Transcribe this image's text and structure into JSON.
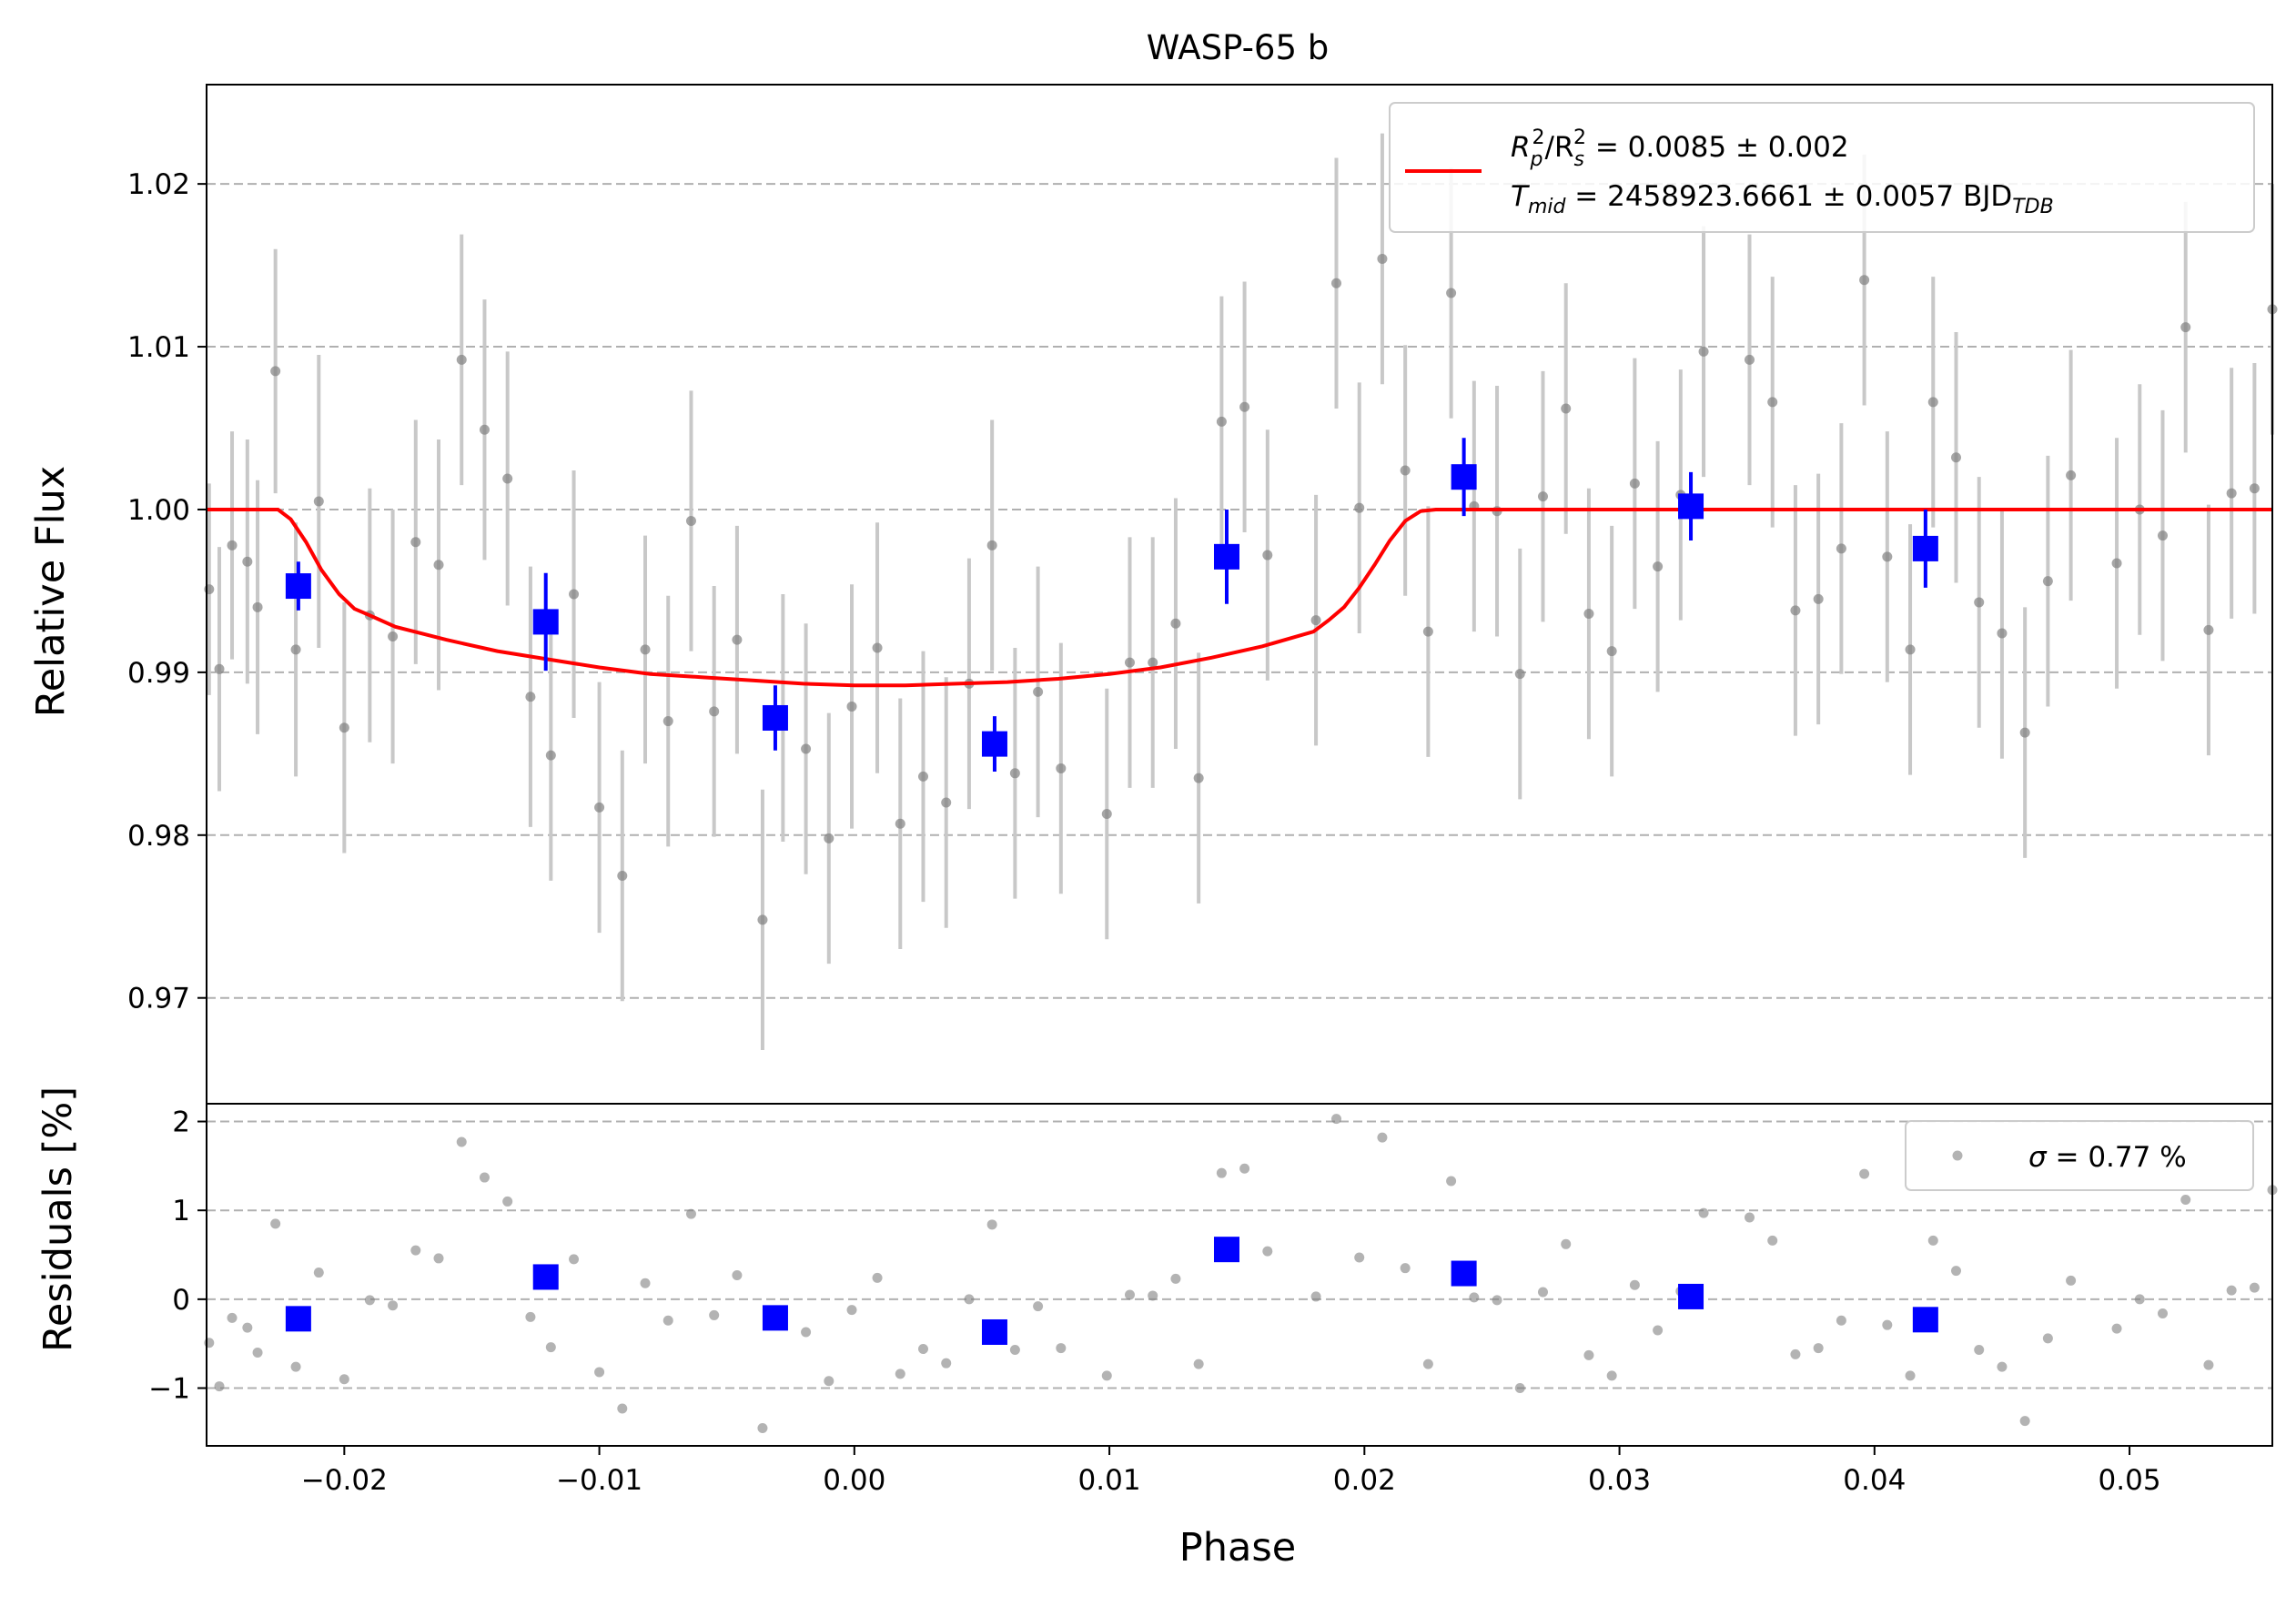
{
  "chart_data": [
    {
      "panel": "flux",
      "type": "scatter",
      "title": "WASP-65 b",
      "ylabel": "Relative Flux",
      "xlim": [
        -0.0254,
        0.0556
      ],
      "ylim": [
        0.9635,
        1.0261
      ],
      "grid": "y-dashed",
      "yticks": [
        0.97,
        0.98,
        0.99,
        1.0,
        1.01,
        1.02
      ],
      "ytick_labels": [
        "0.97",
        "0.98",
        "0.99",
        "1.00",
        "1.01",
        "1.02"
      ],
      "legend": {
        "placement": "top-right",
        "model_color": "#ff0000",
        "line1_parts": [
          "R",
          "p",
          "2",
          "/R",
          "s",
          "2",
          " = 0.0085 ± 0.002"
        ],
        "line2_parts": [
          "T",
          "mid",
          " = 2458923.6661 ± 0.0057 BJD",
          "TDB"
        ]
      },
      "raw_data": {
        "color": "#808080",
        "errorbar_color": "#c8c8c8",
        "points": [
          [
            -0.0253,
            0.9951,
            0.0065
          ],
          [
            -0.0249,
            0.9902,
            0.0075
          ],
          [
            -0.0244,
            0.9978,
            0.007
          ],
          [
            -0.0238,
            0.9968,
            0.0075
          ],
          [
            -0.0234,
            0.994,
            0.0078
          ],
          [
            -0.0227,
            1.0085,
            0.0075
          ],
          [
            -0.0219,
            0.9914,
            0.0078
          ],
          [
            -0.021,
            1.0005,
            0.009
          ],
          [
            -0.02,
            0.9866,
            0.0077
          ],
          [
            -0.019,
            0.9935,
            0.0078
          ],
          [
            -0.0181,
            0.9922,
            0.0078
          ],
          [
            -0.0172,
            0.998,
            0.0075
          ],
          [
            -0.0163,
            0.9966,
            0.0077
          ],
          [
            -0.0154,
            1.0092,
            0.0077
          ],
          [
            -0.0145,
            1.0049,
            0.008
          ],
          [
            -0.0136,
            1.0019,
            0.0078
          ],
          [
            -0.0127,
            0.9885,
            0.008
          ],
          [
            -0.0119,
            0.9849,
            0.0077
          ],
          [
            -0.011,
            0.9948,
            0.0076
          ],
          [
            -0.01,
            0.9817,
            0.0077
          ],
          [
            -0.0091,
            0.9775,
            0.0077
          ],
          [
            -0.0082,
            0.9914,
            0.007
          ],
          [
            -0.0073,
            0.987,
            0.0077
          ],
          [
            -0.0064,
            0.9993,
            0.008
          ],
          [
            -0.0055,
            0.9876,
            0.0077
          ],
          [
            -0.0046,
            0.992,
            0.007
          ],
          [
            -0.0036,
            0.9748,
            0.008
          ],
          [
            -0.0028,
            0.9872,
            0.0076
          ],
          [
            -0.0019,
            0.9853,
            0.0077
          ],
          [
            -0.001,
            0.9798,
            0.0077
          ],
          [
            -0.0001,
            0.9879,
            0.0075
          ],
          [
            0.0009,
            0.9915,
            0.0077
          ],
          [
            0.0018,
            0.9807,
            0.0077
          ],
          [
            0.0027,
            0.9836,
            0.0077
          ],
          [
            0.0036,
            0.982,
            0.0077
          ],
          [
            0.0045,
            0.9893,
            0.0077
          ],
          [
            0.0054,
            0.9978,
            0.0077
          ],
          [
            0.0063,
            0.9838,
            0.0077
          ],
          [
            0.0072,
            0.9888,
            0.0077
          ],
          [
            0.0081,
            0.9841,
            0.0077
          ],
          [
            0.0099,
            0.9813,
            0.0077
          ],
          [
            0.0108,
            0.9906,
            0.0077
          ],
          [
            0.0117,
            0.9906,
            0.0077
          ],
          [
            0.0126,
            0.993,
            0.0077
          ],
          [
            0.0135,
            0.9835,
            0.0077
          ],
          [
            0.0144,
            1.0054,
            0.0077
          ],
          [
            0.0153,
            1.0063,
            0.0077
          ],
          [
            0.0162,
            0.9972,
            0.0077
          ],
          [
            0.0181,
            0.9932,
            0.0077
          ],
          [
            0.0189,
            1.0139,
            0.0077
          ],
          [
            0.0198,
            1.0001,
            0.0077
          ],
          [
            0.0207,
            1.0154,
            0.0077
          ],
          [
            0.0216,
            1.0024,
            0.0077
          ],
          [
            0.0225,
            0.9925,
            0.0077
          ],
          [
            0.0234,
            1.0133,
            0.0077
          ],
          [
            0.0243,
            1.0002,
            0.0077
          ],
          [
            0.0252,
            0.9999,
            0.0077
          ],
          [
            0.0261,
            0.9899,
            0.0077
          ],
          [
            0.027,
            1.0008,
            0.0077
          ],
          [
            0.0279,
            1.0062,
            0.0077
          ],
          [
            0.0288,
            0.9936,
            0.0077
          ],
          [
            0.0297,
            0.9913,
            0.0077
          ],
          [
            0.0306,
            1.0016,
            0.0077
          ],
          [
            0.0315,
            0.9965,
            0.0077
          ],
          [
            0.0324,
            1.0009,
            0.0077
          ],
          [
            0.0333,
            1.0097,
            0.0077
          ],
          [
            0.0351,
            1.0092,
            0.0077
          ],
          [
            0.036,
            1.0066,
            0.0077
          ],
          [
            0.0369,
            0.9938,
            0.0077
          ],
          [
            0.0378,
            0.9945,
            0.0077
          ],
          [
            0.0387,
            0.9976,
            0.0077
          ],
          [
            0.0396,
            1.0141,
            0.0077
          ],
          [
            0.0405,
            0.9971,
            0.0077
          ],
          [
            0.0414,
            0.9914,
            0.0077
          ],
          [
            0.0423,
            1.0066,
            0.0077
          ],
          [
            0.0432,
            1.0032,
            0.0077
          ],
          [
            0.0441,
            0.9943,
            0.0077
          ],
          [
            0.045,
            0.9924,
            0.0077
          ],
          [
            0.0459,
            0.9863,
            0.0077
          ],
          [
            0.0468,
            0.9956,
            0.0077
          ],
          [
            0.0477,
            1.0021,
            0.0077
          ],
          [
            0.0495,
            0.9967,
            0.0077
          ],
          [
            0.0504,
            1.0,
            0.0077
          ],
          [
            0.0513,
            0.9984,
            0.0077
          ],
          [
            0.0522,
            1.0112,
            0.0077
          ],
          [
            0.0531,
            0.9926,
            0.0077
          ],
          [
            0.054,
            1.001,
            0.0077
          ],
          [
            0.0549,
            1.0013,
            0.0077
          ],
          [
            0.0556,
            1.0123,
            0.0077
          ]
        ]
      },
      "binned_data": {
        "color": "#0000ff",
        "points": [
          [
            -0.0218,
            0.9953,
            0.0015
          ],
          [
            -0.0121,
            0.9931,
            0.003
          ],
          [
            -0.0031,
            0.9872,
            0.002
          ],
          [
            0.0055,
            0.9856,
            0.0017
          ],
          [
            0.0146,
            0.9971,
            0.0029
          ],
          [
            0.0239,
            1.002,
            0.0024
          ],
          [
            0.0328,
            1.0002,
            0.0021
          ],
          [
            0.042,
            0.9976,
            0.0024
          ]
        ]
      },
      "model_curve": {
        "color": "#ff0000",
        "points": [
          [
            -0.0254,
            1.0
          ],
          [
            -0.0226,
            1.0
          ],
          [
            -0.0221,
            0.9994
          ],
          [
            -0.0215,
            0.998
          ],
          [
            -0.0209,
            0.9963
          ],
          [
            -0.0202,
            0.9948
          ],
          [
            -0.0196,
            0.9939
          ],
          [
            -0.019,
            0.9935
          ],
          [
            -0.018,
            0.9928
          ],
          [
            -0.016,
            0.992
          ],
          [
            -0.014,
            0.9913
          ],
          [
            -0.012,
            0.9908
          ],
          [
            -0.01,
            0.9903
          ],
          [
            -0.008,
            0.9899
          ],
          [
            -0.006,
            0.9897
          ],
          [
            -0.004,
            0.9895
          ],
          [
            -0.002,
            0.9893
          ],
          [
            0.0,
            0.9892
          ],
          [
            0.002,
            0.9892
          ],
          [
            0.004,
            0.9893
          ],
          [
            0.006,
            0.9894
          ],
          [
            0.008,
            0.9896
          ],
          [
            0.01,
            0.9899
          ],
          [
            0.012,
            0.9903
          ],
          [
            0.014,
            0.9909
          ],
          [
            0.016,
            0.9916
          ],
          [
            0.018,
            0.9925
          ],
          [
            0.0186,
            0.9932
          ],
          [
            0.0192,
            0.994
          ],
          [
            0.0198,
            0.9952
          ],
          [
            0.0204,
            0.9966
          ],
          [
            0.021,
            0.9981
          ],
          [
            0.0216,
            0.9993
          ],
          [
            0.0222,
            0.9999
          ],
          [
            0.0228,
            1.0
          ],
          [
            0.0556,
            1.0
          ]
        ]
      }
    },
    {
      "panel": "residuals",
      "type": "scatter",
      "xlabel": "Phase",
      "ylabel": "Residuals [%]",
      "xlim": [
        -0.0254,
        0.0556
      ],
      "ylim": [
        -1.65,
        2.2
      ],
      "grid": "y-dashed",
      "xticks": [
        -0.02,
        -0.01,
        0.0,
        0.01,
        0.02,
        0.03,
        0.04,
        0.05
      ],
      "xtick_labels": [
        "−0.02",
        "−0.01",
        "0.00",
        "0.01",
        "0.02",
        "0.03",
        "0.04",
        "0.05"
      ],
      "yticks": [
        -1,
        0,
        1,
        2
      ],
      "ytick_labels": [
        "−1",
        "0",
        "1",
        "2"
      ],
      "legend": {
        "placement": "top-right",
        "label_parts": [
          "σ",
          " = 0.77 %"
        ]
      },
      "raw_residuals": {
        "color": "#808080",
        "points": [
          [
            -0.0253,
            -0.49
          ],
          [
            -0.0249,
            -0.98
          ],
          [
            -0.0244,
            -0.21
          ],
          [
            -0.0238,
            -0.32
          ],
          [
            -0.0234,
            -0.6
          ],
          [
            -0.0227,
            0.85
          ],
          [
            -0.0219,
            -0.76
          ],
          [
            -0.021,
            0.3
          ],
          [
            -0.02,
            -0.9
          ],
          [
            -0.019,
            -0.01
          ],
          [
            -0.0181,
            -0.07
          ],
          [
            -0.0172,
            0.55
          ],
          [
            -0.0163,
            0.46
          ],
          [
            -0.0154,
            1.77
          ],
          [
            -0.0145,
            1.37
          ],
          [
            -0.0136,
            1.1
          ],
          [
            -0.0127,
            -0.2
          ],
          [
            -0.0119,
            -0.54
          ],
          [
            -0.011,
            0.45
          ],
          [
            -0.01,
            -0.82
          ],
          [
            -0.0091,
            -1.23
          ],
          [
            -0.0082,
            0.18
          ],
          [
            -0.0073,
            -0.24
          ],
          [
            -0.0064,
            0.96
          ],
          [
            -0.0055,
            -0.18
          ],
          [
            -0.0046,
            0.27
          ],
          [
            -0.0036,
            -1.45
          ],
          [
            -0.0028,
            -0.15
          ],
          [
            -0.0019,
            -0.37
          ],
          [
            -0.001,
            -0.92
          ],
          [
            -0.0001,
            -0.12
          ],
          [
            0.0009,
            0.24
          ],
          [
            0.0018,
            -0.84
          ],
          [
            0.0027,
            -0.56
          ],
          [
            0.0036,
            -0.72
          ],
          [
            0.0045,
            0.0
          ],
          [
            0.0054,
            0.84
          ],
          [
            0.0063,
            -0.57
          ],
          [
            0.0072,
            -0.08
          ],
          [
            0.0081,
            -0.55
          ],
          [
            0.0099,
            -0.86
          ],
          [
            0.0108,
            0.05
          ],
          [
            0.0117,
            0.04
          ],
          [
            0.0126,
            0.23
          ],
          [
            0.0135,
            -0.73
          ],
          [
            0.0144,
            1.42
          ],
          [
            0.0153,
            1.47
          ],
          [
            0.0162,
            0.54
          ],
          [
            0.0181,
            0.03
          ],
          [
            0.0189,
            2.03
          ],
          [
            0.0198,
            0.47
          ],
          [
            0.0207,
            1.82
          ],
          [
            0.0216,
            0.35
          ],
          [
            0.0225,
            -0.73
          ],
          [
            0.0234,
            1.33
          ],
          [
            0.0243,
            0.02
          ],
          [
            0.0252,
            -0.01
          ],
          [
            0.0261,
            -1.0
          ],
          [
            0.027,
            0.08
          ],
          [
            0.0279,
            0.62
          ],
          [
            0.0288,
            -0.63
          ],
          [
            0.0297,
            -0.86
          ],
          [
            0.0306,
            0.16
          ],
          [
            0.0315,
            -0.35
          ],
          [
            0.0324,
            0.09
          ],
          [
            0.0333,
            0.97
          ],
          [
            0.0351,
            0.92
          ],
          [
            0.036,
            0.66
          ],
          [
            0.0369,
            -0.62
          ],
          [
            0.0378,
            -0.55
          ],
          [
            0.0387,
            -0.24
          ],
          [
            0.0396,
            1.41
          ],
          [
            0.0405,
            -0.29
          ],
          [
            0.0414,
            -0.86
          ],
          [
            0.0423,
            0.66
          ],
          [
            0.0432,
            0.32
          ],
          [
            0.0441,
            -0.57
          ],
          [
            0.045,
            -0.76
          ],
          [
            0.0459,
            -1.37
          ],
          [
            0.0468,
            -0.44
          ],
          [
            0.0477,
            0.21
          ],
          [
            0.0495,
            -0.33
          ],
          [
            0.0504,
            0.0
          ],
          [
            0.0513,
            -0.16
          ],
          [
            0.0522,
            1.12
          ],
          [
            0.0531,
            -0.74
          ],
          [
            0.054,
            0.1
          ],
          [
            0.0549,
            0.13
          ],
          [
            0.0556,
            1.23
          ]
        ]
      },
      "binned_residuals": {
        "color": "#0000ff",
        "points": [
          [
            -0.0218,
            -0.22
          ],
          [
            -0.0121,
            0.25
          ],
          [
            -0.0031,
            -0.21
          ],
          [
            0.0055,
            -0.37
          ],
          [
            0.0146,
            0.56
          ],
          [
            0.0239,
            0.29
          ],
          [
            0.0328,
            0.03
          ],
          [
            0.042,
            -0.23
          ]
        ]
      }
    }
  ]
}
